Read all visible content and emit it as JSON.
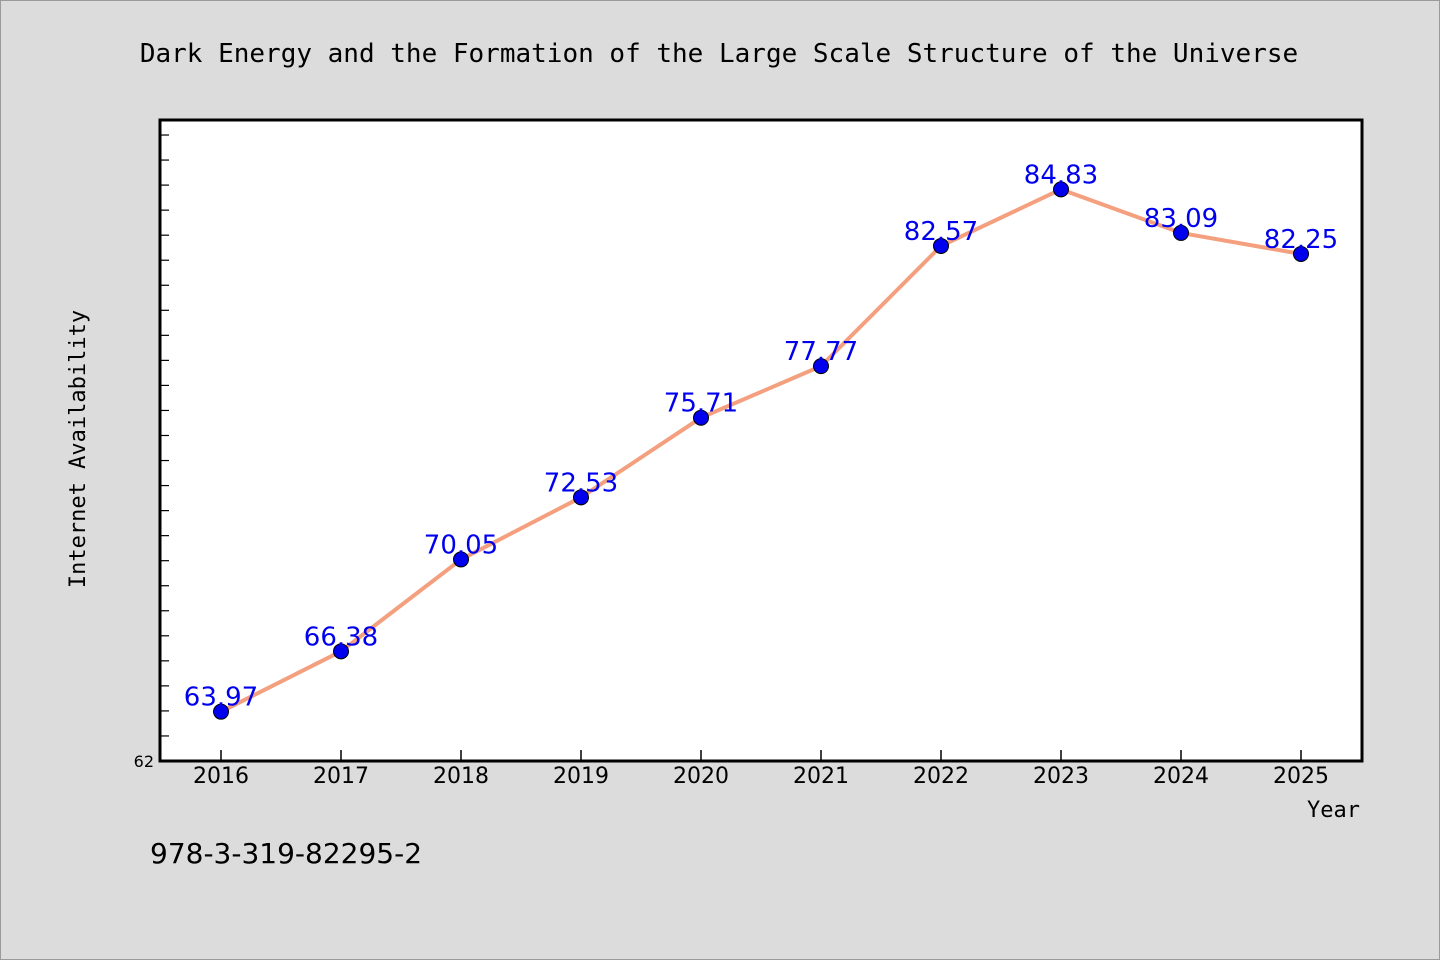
{
  "chart_data": {
    "type": "line",
    "title": "Dark Energy and the Formation of the Large Scale Structure of the Universe",
    "xlabel": "Year",
    "ylabel": "Internet Availability",
    "ylim": [
      62,
      87.6
    ],
    "y_tick_labels": [
      "62"
    ],
    "categories": [
      "2016",
      "2017",
      "2018",
      "2019",
      "2020",
      "2021",
      "2022",
      "2023",
      "2024",
      "2025"
    ],
    "series": [
      {
        "values": [
          63.97,
          66.38,
          70.05,
          72.53,
          75.71,
          77.77,
          82.57,
          84.83,
          83.09,
          82.25
        ],
        "data_labels": [
          "63.97",
          "66.38",
          "70.05",
          "72.53",
          "75.71",
          "77.77",
          "82.57",
          "84.83",
          "83.09",
          "82.25"
        ],
        "line_color": "#f4a07e",
        "marker_color": "#0000ee",
        "label_color": "#0000ee"
      }
    ],
    "grid": false,
    "legend": "none"
  },
  "footer": {
    "isbn": "978-3-319-82295-2"
  },
  "colors": {
    "background": "#dcdcdc",
    "plot_background": "#ffffff",
    "axis": "#000000"
  }
}
